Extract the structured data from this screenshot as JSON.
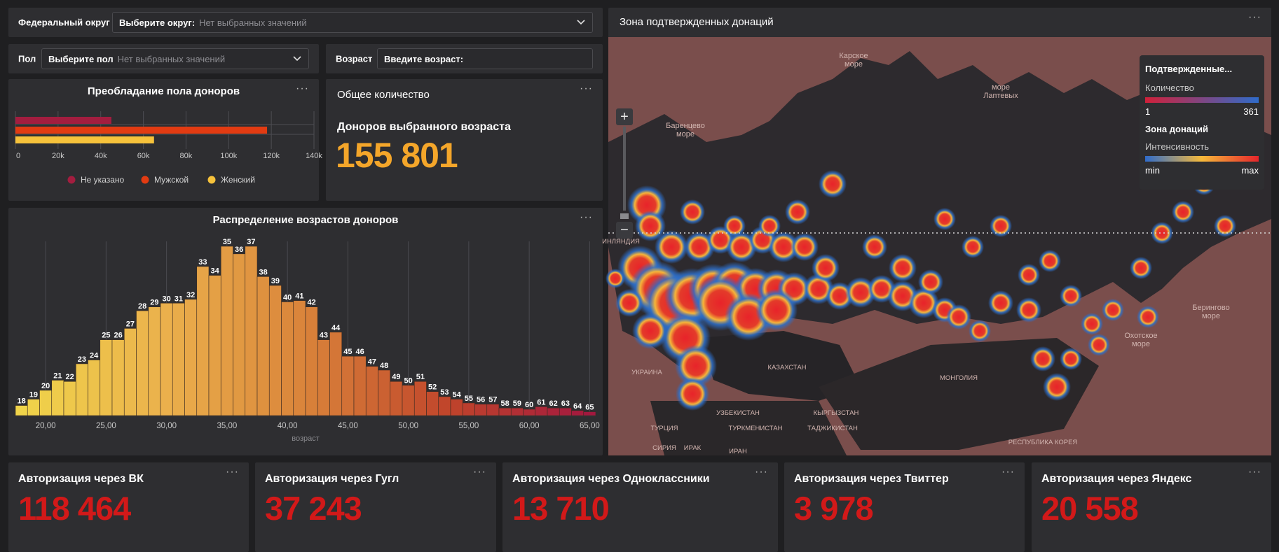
{
  "filters": {
    "district": {
      "label": "Федеральный округ",
      "select_label": "Выберите округ:",
      "placeholder": "Нет выбранных значений"
    },
    "gender": {
      "label": "Пол",
      "select_label": "Выберите пол",
      "placeholder": "Нет выбранных значений"
    },
    "age": {
      "label": "Возраст",
      "input_label": "Введите возраст:"
    }
  },
  "gender_panel": {
    "title": "Преобладание пола доноров",
    "chart_data": {
      "type": "bar",
      "orientation": "horizontal",
      "categories": [
        "Не указано",
        "Мужской",
        "Женский"
      ],
      "values": [
        45000,
        118000,
        65000
      ],
      "colors": [
        "#a31d3f",
        "#e23b12",
        "#f6c23b"
      ],
      "xlim": [
        0,
        140000
      ],
      "x_ticks": [
        "0",
        "20k",
        "40k",
        "60k",
        "80k",
        "100k",
        "120k",
        "140k"
      ],
      "legend": [
        "Не указано",
        "Мужской",
        "Женский"
      ],
      "legend_position": "bottom"
    }
  },
  "total_panel": {
    "title": "Общее количество",
    "subtitle": "Доноров выбранного возраста",
    "value": "155 801"
  },
  "age_panel": {
    "title": "Распределение возрастов доноров",
    "chart_data": {
      "type": "bar",
      "x": [
        18,
        19,
        20,
        21,
        22,
        23,
        24,
        25,
        26,
        27,
        28,
        29,
        30,
        31,
        32,
        33,
        34,
        35,
        36,
        37,
        38,
        39,
        40,
        41,
        42,
        43,
        44,
        45,
        46,
        47,
        48,
        49,
        50,
        51,
        52,
        53,
        54,
        55,
        56,
        57,
        58,
        59,
        60,
        61,
        62,
        63,
        64,
        65
      ],
      "values": [
        8,
        13,
        20,
        28,
        27,
        41,
        44,
        60,
        60,
        69,
        83,
        86,
        89,
        89,
        92,
        118,
        111,
        134,
        128,
        134,
        110,
        103,
        90,
        91,
        86,
        60,
        66,
        47,
        47,
        39,
        36,
        27,
        24,
        27,
        19,
        15,
        13,
        10,
        9,
        9,
        6,
        6,
        5,
        7,
        6,
        6,
        4,
        3
      ],
      "x_ticks": [
        "20,00",
        "25,00",
        "30,00",
        "35,00",
        "40,00",
        "45,00",
        "50,00",
        "55,00",
        "60,00",
        "65,00"
      ],
      "xlabel": "возраст",
      "gradient": [
        "#f0d44a",
        "#ebb14c",
        "#d9833a",
        "#c0452b",
        "#a2183f"
      ]
    }
  },
  "map_panel": {
    "title": "Зона подтвержденных донаций",
    "zoom_in": "+",
    "zoom_out": "−",
    "legend": {
      "title": "Подтвержденные...",
      "count_label": "Количество",
      "count_min": "1",
      "count_max": "361",
      "zone_title": "Зона донаций",
      "intensity_label": "Интенсивность",
      "int_min": "min",
      "int_max": "max"
    },
    "labels": {
      "kara": "Карское\nморе",
      "laptev": "море\nЛаптевых",
      "barents": "Баренцево\nморе",
      "bering": "Берингово\nморе",
      "okhotsk": "Охотское\nморе",
      "kazakhstan": "КАЗАХСТАН",
      "mongolia": "МОНГОЛИЯ",
      "uzbekistan": "УЗБЕКИСТАН",
      "kyrgyzstan": "КЫРГЫЗСТАН",
      "turkey": "ТУРЦИЯ",
      "turkmenistan": "ТУРКМЕНИСТАН",
      "tajikistan": "ТАДЖИКИСТАН",
      "syria": "СИРИЯ",
      "iraq": "ИРАК",
      "iran": "ИРАН",
      "ukraine": "УКРАИНА",
      "korea": "РЕСПУБЛИКА КОРЕЯ",
      "finland": "ИНЛЯНДИЯ"
    }
  },
  "kpis": [
    {
      "title": "Авторизация через ВК",
      "value": "118 464"
    },
    {
      "title": "Авторизация через Гугл",
      "value": "37 243"
    },
    {
      "title": "Авторизация через Одноклассники",
      "value": "13 710"
    },
    {
      "title": "Авторизация через Твиттер",
      "value": "3 978"
    },
    {
      "title": "Авторизация через Яндекс",
      "value": "20 558"
    }
  ],
  "menu_glyph": "···"
}
